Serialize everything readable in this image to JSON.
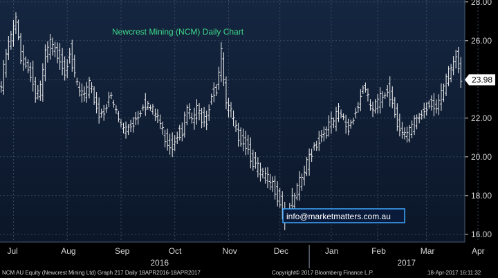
{
  "chart_data": {
    "type": "ohlc",
    "title": "Newcrest Mining (NCM) Daily Chart",
    "annotation": "info@marketmatters.com.au",
    "last_price_label": "23.98",
    "last_price": 23.98,
    "y_ticks": [
      "16.00",
      "18.00",
      "20.00",
      "22.00",
      "24.00",
      "26.00",
      "28.00"
    ],
    "ylim": [
      15.6,
      28.1
    ],
    "x_month_labels": [
      {
        "label": "Jul",
        "pos": 5
      },
      {
        "label": "Aug",
        "pos": 27
      },
      {
        "label": "Sep",
        "pos": 49
      },
      {
        "label": "Oct",
        "pos": 71
      },
      {
        "label": "Nov",
        "pos": 93
      },
      {
        "label": "Dec",
        "pos": 114
      },
      {
        "label": "Jan",
        "pos": 135
      },
      {
        "label": "Feb",
        "pos": 154
      },
      {
        "label": "Mar",
        "pos": 174
      },
      {
        "label": "Apr",
        "pos": 195
      }
    ],
    "year_labels": [
      {
        "label": "2016",
        "pos": 61
      },
      {
        "label": "2017",
        "pos": 162
      }
    ],
    "anchors": [
      [
        0,
        23.6
      ],
      [
        2,
        25.3
      ],
      [
        4,
        26.2
      ],
      [
        6,
        27.0
      ],
      [
        8,
        25.2
      ],
      [
        10,
        24.7
      ],
      [
        12,
        24.4
      ],
      [
        14,
        23.1
      ],
      [
        16,
        23.4
      ],
      [
        18,
        25.3
      ],
      [
        20,
        25.8
      ],
      [
        22,
        25.4
      ],
      [
        24,
        25.2
      ],
      [
        26,
        24.4
      ],
      [
        28,
        25.6
      ],
      [
        30,
        24.0
      ],
      [
        32,
        23.3
      ],
      [
        34,
        23.2
      ],
      [
        36,
        23.6
      ],
      [
        38,
        23.0
      ],
      [
        40,
        22.2
      ],
      [
        42,
        22.4
      ],
      [
        44,
        23.2
      ],
      [
        46,
        22.6
      ],
      [
        48,
        21.9
      ],
      [
        50,
        21.4
      ],
      [
        52,
        21.6
      ],
      [
        54,
        21.8
      ],
      [
        56,
        22.2
      ],
      [
        58,
        22.8
      ],
      [
        60,
        22.7
      ],
      [
        62,
        22.3
      ],
      [
        64,
        22.1
      ],
      [
        66,
        21.3
      ],
      [
        68,
        20.8
      ],
      [
        70,
        20.6
      ],
      [
        72,
        21.3
      ],
      [
        74,
        21.4
      ],
      [
        76,
        22.5
      ],
      [
        78,
        21.9
      ],
      [
        80,
        22.4
      ],
      [
        82,
        22.1
      ],
      [
        84,
        22.0
      ],
      [
        86,
        23.3
      ],
      [
        88,
        23.5
      ],
      [
        90,
        25.3
      ],
      [
        92,
        22.6
      ],
      [
        94,
        22.2
      ],
      [
        96,
        21.3
      ],
      [
        98,
        21.0
      ],
      [
        100,
        20.7
      ],
      [
        102,
        20.1
      ],
      [
        104,
        19.5
      ],
      [
        106,
        19.2
      ],
      [
        108,
        18.9
      ],
      [
        110,
        18.6
      ],
      [
        112,
        18.4
      ],
      [
        114,
        17.7
      ],
      [
        116,
        16.8
      ],
      [
        118,
        17.4
      ],
      [
        120,
        17.9
      ],
      [
        122,
        18.6
      ],
      [
        124,
        19.2
      ],
      [
        126,
        20.0
      ],
      [
        128,
        20.6
      ],
      [
        130,
        20.9
      ],
      [
        132,
        21.3
      ],
      [
        134,
        21.6
      ],
      [
        136,
        21.8
      ],
      [
        138,
        22.3
      ],
      [
        140,
        21.9
      ],
      [
        142,
        21.4
      ],
      [
        144,
        22.2
      ],
      [
        146,
        22.6
      ],
      [
        148,
        23.7
      ],
      [
        150,
        22.9
      ],
      [
        152,
        22.4
      ],
      [
        154,
        22.8
      ],
      [
        156,
        23.1
      ],
      [
        158,
        23.6
      ],
      [
        160,
        22.8
      ],
      [
        162,
        21.9
      ],
      [
        164,
        21.2
      ],
      [
        166,
        21.0
      ],
      [
        168,
        21.5
      ],
      [
        170,
        22.0
      ],
      [
        172,
        22.2
      ],
      [
        174,
        22.6
      ],
      [
        176,
        22.9
      ],
      [
        178,
        22.5
      ],
      [
        180,
        23.1
      ],
      [
        182,
        23.9
      ],
      [
        184,
        24.6
      ],
      [
        186,
        25.2
      ],
      [
        188,
        24.1
      ]
    ]
  },
  "footer": {
    "left": "NCM AU Equity (Newcrest Mining Ltd) Graph 217  Daily 18APR2016-18APR2017",
    "center": "Copyright© 2017 Bloomberg Finance L.P.",
    "right": "18-Apr-2017 16:11:32"
  },
  "colors": {
    "background_top": "#132238",
    "background_bottom": "#0a1628",
    "title": "#3dd98a",
    "badge_bg": "#ffffff",
    "info_border": "#3fa8ff",
    "info_bg": "#0a1a3a",
    "candle": "#f2f2f2",
    "axis_text": "#d8d8d8"
  }
}
